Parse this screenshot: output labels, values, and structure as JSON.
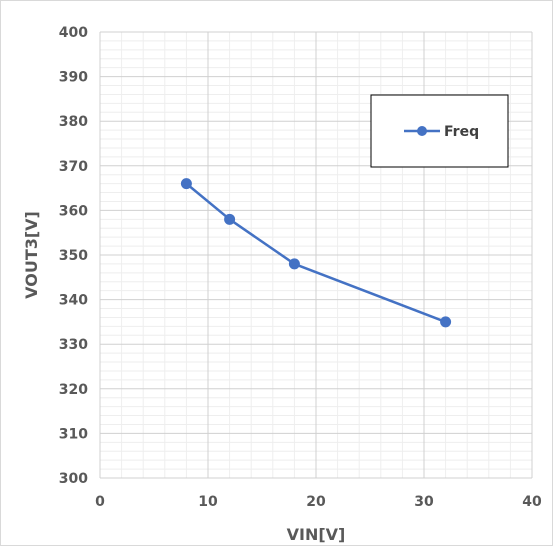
{
  "chart_data": {
    "type": "line",
    "title": "",
    "xlabel": "VIN[V]",
    "ylabel": "VOUT3[V]",
    "xlim": [
      0,
      40
    ],
    "ylim": [
      300,
      400
    ],
    "x_ticks": [
      "0",
      "10",
      "20",
      "30",
      "40"
    ],
    "y_ticks": [
      "300",
      "310",
      "320",
      "330",
      "340",
      "350",
      "360",
      "370",
      "380",
      "390",
      "400"
    ],
    "grid": true,
    "minor_grid": true,
    "legend_position": "top-right",
    "series": [
      {
        "name": "Freq",
        "color": "#4472C4",
        "x": [
          8,
          12,
          18,
          32
        ],
        "y": [
          366,
          358,
          348,
          335
        ]
      }
    ]
  }
}
